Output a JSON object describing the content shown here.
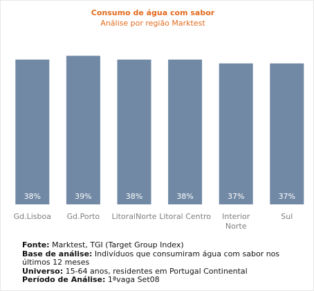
{
  "chart_data": {
    "type": "bar",
    "title": "Consumo de água com sabor",
    "subtitle": "Análise por região Marktest",
    "categories": [
      "Gd.Lisboa",
      "Gd.Porto",
      "LitoralNorte",
      "Litoral Centro",
      "Interior Norte",
      "Sul"
    ],
    "category_lines": [
      [
        "Gd.Lisboa"
      ],
      [
        "Gd.Porto"
      ],
      [
        "LitoralNorte"
      ],
      [
        "Litoral Centro"
      ],
      [
        "Interior",
        "Norte"
      ],
      [
        "Sul"
      ]
    ],
    "values": [
      38,
      39,
      38,
      38,
      37,
      37
    ],
    "data_labels": [
      "38%",
      "39%",
      "38%",
      "38%",
      "37%",
      "37%"
    ],
    "bar_color": "#7189a5",
    "label_color": "#ffffff",
    "grid": false,
    "legend": "none"
  },
  "notes": {
    "fonte_label": "Fonte:",
    "fonte_text": " Marktest, TGI (Target Group Index)",
    "base_label": "Base de análise:",
    "base_text": " Indivíduos que consumiram água com sabor nos últimos 12 meses",
    "universo_label": "Universo:",
    "universo_text": " 15-64 anos, residentes em Portugal Continental",
    "periodo_label": "Período de Análise:",
    "periodo_text": " 1ªvaga Set08"
  },
  "colors": {
    "title": "#e26a1d",
    "axis_text": "#7d7d7d"
  }
}
